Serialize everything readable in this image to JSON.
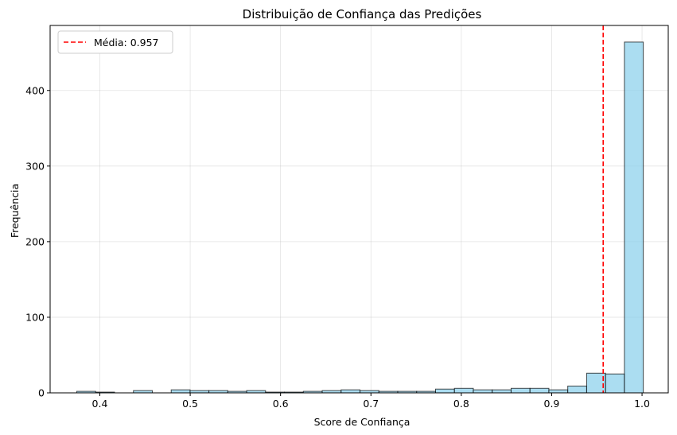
{
  "chart_data": {
    "type": "bar",
    "title": "Distribuição de Confiança das Predições",
    "xlabel": "Score de Confiança",
    "ylabel": "Frequência",
    "xlim": [
      0.345,
      1.029
    ],
    "ylim": [
      0,
      486
    ],
    "xticks": [
      0.4,
      0.5,
      0.6,
      0.7,
      0.8,
      0.9,
      1.0
    ],
    "xtick_labels": [
      "0.4",
      "0.5",
      "0.6",
      "0.7",
      "0.8",
      "0.9",
      "1.0"
    ],
    "yticks": [
      0,
      100,
      200,
      300,
      400
    ],
    "ytick_labels": [
      "0",
      "100",
      "200",
      "300",
      "400"
    ],
    "grid": true,
    "bar_color": "#87ceeb",
    "bar_edge_color": "#000000",
    "bin_edges": [
      0.3745,
      0.3954,
      0.4163,
      0.4372,
      0.4581,
      0.479,
      0.4999,
      0.5207,
      0.5416,
      0.5625,
      0.5834,
      0.6043,
      0.6252,
      0.6461,
      0.667,
      0.6879,
      0.7088,
      0.7297,
      0.7506,
      0.7715,
      0.7924,
      0.8133,
      0.8342,
      0.8551,
      0.876,
      0.8969,
      0.9178,
      0.9387,
      0.9596,
      0.9805,
      1.0014
    ],
    "counts": [
      2,
      1,
      0,
      3,
      0,
      4,
      3,
      3,
      2,
      3,
      1,
      1,
      2,
      3,
      4,
      3,
      2,
      2,
      2,
      5,
      6,
      4,
      4,
      6,
      6,
      4,
      9,
      26,
      25,
      464
    ],
    "mean_line": {
      "x": 0.957,
      "color": "#ff0000",
      "label": "Média: 0.957"
    },
    "legend": {
      "position": "top-left",
      "entries": [
        "Média: 0.957"
      ]
    }
  }
}
